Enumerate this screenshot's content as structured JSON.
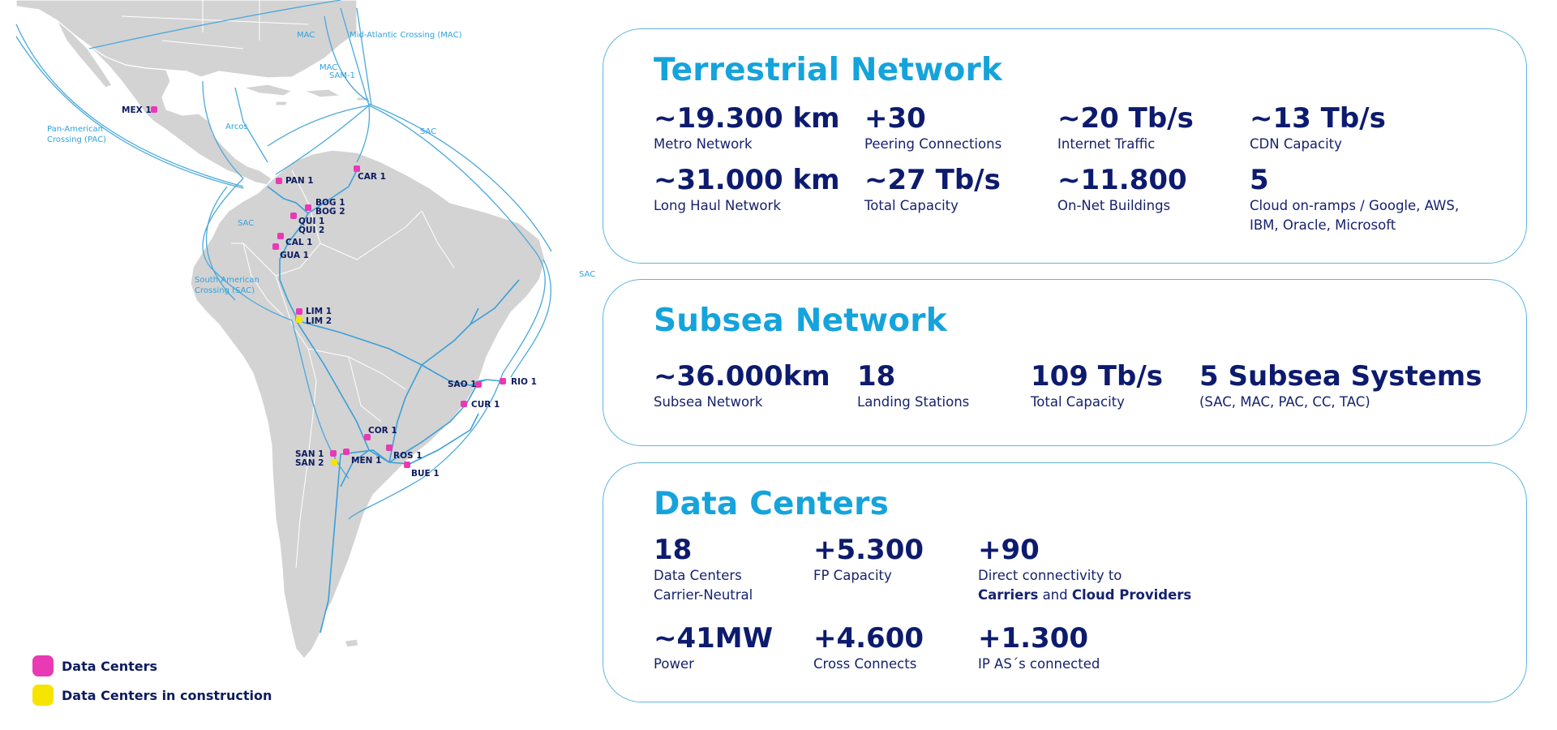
{
  "map": {
    "cable_labels": {
      "mac_top": "MAC",
      "mid_atlantic": "Mid-Atlantic Crossing (MAC)",
      "mac_mid": "MAC",
      "sam1": "SAM-1",
      "pac_1": "Pan-American",
      "pac_2": "Crossing (PAC)",
      "arcos": "Arcos",
      "sac_caribbean": "SAC",
      "sac_pacific": "SAC",
      "sac_atlantic": "SAC",
      "sa_cross_1": "South American",
      "sa_cross_2": "Crossing (SAC)"
    },
    "cities": {
      "mex1": "MEX 1",
      "pan1": "PAN 1",
      "car1": "CAR 1",
      "bog1": "BOG 1",
      "bog2": "BOG 2",
      "qui1": "QUI 1",
      "qui2": "QUI 2",
      "cal1": "CAL 1",
      "gua1": "GUA 1",
      "lim1": "LIM 1",
      "lim2": "LIM 2",
      "sao1": "SAO 1",
      "rio1": "RIO 1",
      "cur1": "CUR 1",
      "cor1": "COR 1",
      "san1": "SAN 1",
      "san2": "SAN 2",
      "men1": "MEN 1",
      "ros1": "ROS 1",
      "bue1": "BUE 1"
    },
    "colors": {
      "data_center": "#e83ab4",
      "in_construction": "#f5e400",
      "cable": "#4aa9dc",
      "land": "#d3d3d3"
    }
  },
  "legend": {
    "data_centers": "Data Centers",
    "in_construction": "Data Centers in construction"
  },
  "terrestrial": {
    "title": "Terrestrial Network",
    "stats": [
      {
        "value": "~19.300 km",
        "label": "Metro Network"
      },
      {
        "value": "+30",
        "label": "Peering Connections"
      },
      {
        "value": "~20 Tb/s",
        "label": "Internet Traffic"
      },
      {
        "value": "~13 Tb/s",
        "label": "CDN Capacity"
      },
      {
        "value": "~31.000 km",
        "label": "Long Haul Network"
      },
      {
        "value": "~27 Tb/s",
        "label": "Total Capacity"
      },
      {
        "value": "~11.800",
        "label": "On-Net Buildings"
      },
      {
        "value": "5",
        "label": "Cloud on-ramps / Google, AWS,",
        "label2": "IBM, Oracle, Microsoft"
      }
    ]
  },
  "subsea": {
    "title": "Subsea Network",
    "stats": [
      {
        "value": "~36.000km",
        "label": "Subsea Network"
      },
      {
        "value": "18",
        "label": "Landing Stations"
      },
      {
        "value": "109 Tb/s",
        "label": "Total Capacity"
      },
      {
        "value": "5 Subsea Systems",
        "label": "(SAC, MAC, PAC, CC, TAC)"
      }
    ]
  },
  "datacenters": {
    "title": "Data Centers",
    "stats": [
      {
        "value": "18",
        "label": "Data Centers",
        "label2": "Carrier-Neutral"
      },
      {
        "value": "+5.300",
        "label": "FP Capacity"
      },
      {
        "value": "+90",
        "label": "Direct connectivity to",
        "label2_b1": "Carriers",
        "label2_mid": " and ",
        "label2_b2": "Cloud Providers"
      },
      {
        "value": "~41MW",
        "label": "Power"
      },
      {
        "value": "+4.600",
        "label": "Cross Connects"
      },
      {
        "value": "+1.300",
        "label": "IP AS´s connected"
      }
    ]
  }
}
